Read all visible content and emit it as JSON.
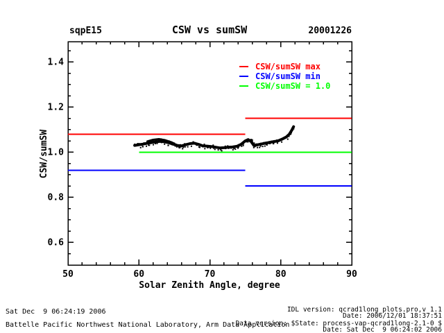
{
  "header": {
    "site": "sqpE15",
    "title": "CSW vs sumSW",
    "date": "20001226"
  },
  "chart_data": {
    "type": "scatter",
    "title": "CSW vs sumSW",
    "xlabel": "Solar Zenith Angle, degree",
    "ylabel": "CSW/sumSW",
    "xlim": [
      50,
      90
    ],
    "ylim": [
      0.5,
      1.49
    ],
    "xticks": [
      50,
      60,
      70,
      80,
      90
    ],
    "yticks": [
      0.6,
      0.8,
      1.0,
      1.2,
      1.4
    ],
    "x_minor_step": 2,
    "y_minor_step": 0.05,
    "grid": false,
    "legend_position": "upper-right-inside",
    "legend": [
      {
        "label": "CSW/sumSW max",
        "color": "#ff0000"
      },
      {
        "label": "CSW/sumSW min",
        "color": "#0000ff"
      },
      {
        "label": "CSW/sumSW = 1.0",
        "color": "#00ff00"
      }
    ],
    "limit_lines": [
      {
        "name": "max-limit-low-sza",
        "color": "#ff0000",
        "x": [
          50,
          75
        ],
        "y": 1.08
      },
      {
        "name": "max-limit-high-sza",
        "color": "#ff0000",
        "x": [
          75,
          90
        ],
        "y": 1.15
      },
      {
        "name": "min-limit-low-sza",
        "color": "#0000ff",
        "x": [
          50,
          75
        ],
        "y": 0.92
      },
      {
        "name": "min-limit-high-sza",
        "color": "#0000ff",
        "x": [
          75,
          90
        ],
        "y": 0.85
      },
      {
        "name": "unity-line",
        "color": "#00ff00",
        "x": [
          60,
          90
        ],
        "y": 1.0
      }
    ],
    "series": [
      {
        "name": "CSW/sumSW ratio",
        "color": "#000000",
        "points": [
          [
            59.4,
            1.03
          ],
          [
            60.0,
            1.033
          ],
          [
            60.6,
            1.036
          ],
          [
            61.2,
            1.04
          ],
          [
            61.8,
            1.043
          ],
          [
            62.4,
            1.046
          ],
          [
            63.0,
            1.048
          ],
          [
            63.6,
            1.046
          ],
          [
            64.2,
            1.042
          ],
          [
            64.8,
            1.036
          ],
          [
            65.4,
            1.03
          ],
          [
            66.0,
            1.028
          ],
          [
            66.6,
            1.033
          ],
          [
            67.2,
            1.038
          ],
          [
            67.8,
            1.04
          ],
          [
            68.4,
            1.035
          ],
          [
            69.0,
            1.028
          ],
          [
            69.6,
            1.027
          ],
          [
            70.2,
            1.025
          ],
          [
            70.8,
            1.022
          ],
          [
            71.4,
            1.019
          ],
          [
            72.0,
            1.02
          ],
          [
            72.6,
            1.022
          ],
          [
            73.2,
            1.023
          ],
          [
            73.8,
            1.026
          ],
          [
            74.4,
            1.035
          ],
          [
            75.0,
            1.05
          ],
          [
            75.4,
            1.056
          ],
          [
            75.8,
            1.048
          ],
          [
            76.2,
            1.03
          ],
          [
            76.6,
            1.032
          ],
          [
            77.2,
            1.036
          ],
          [
            77.8,
            1.04
          ],
          [
            78.4,
            1.043
          ],
          [
            79.0,
            1.047
          ],
          [
            79.6,
            1.05
          ],
          [
            80.2,
            1.058
          ],
          [
            80.8,
            1.068
          ],
          [
            81.2,
            1.08
          ],
          [
            81.5,
            1.095
          ],
          [
            81.8,
            1.113
          ]
        ]
      },
      {
        "name": "upper-strand",
        "color": "#000000",
        "points": [
          [
            61.2,
            1.048
          ],
          [
            62.0,
            1.055
          ],
          [
            62.8,
            1.058
          ],
          [
            63.6,
            1.054
          ],
          [
            64.4,
            1.046
          ],
          [
            65.0,
            1.038
          ]
        ]
      }
    ]
  },
  "footer": {
    "left": [
      "Sat Dec  9 06:24:19 2006",
      "Battelle Pacific Northwest National Laboratory, Arm Data Application"
    ],
    "right": [
      "IDL version: qcrad1long_plots.pro,v 1.1",
      "Date: 2006/12/01 18:37:51",
      "Data version: $State: process-vap-qcrad1long-2.1-0 $",
      "Date: Sat Dec  9 06:24:02 2006"
    ]
  }
}
